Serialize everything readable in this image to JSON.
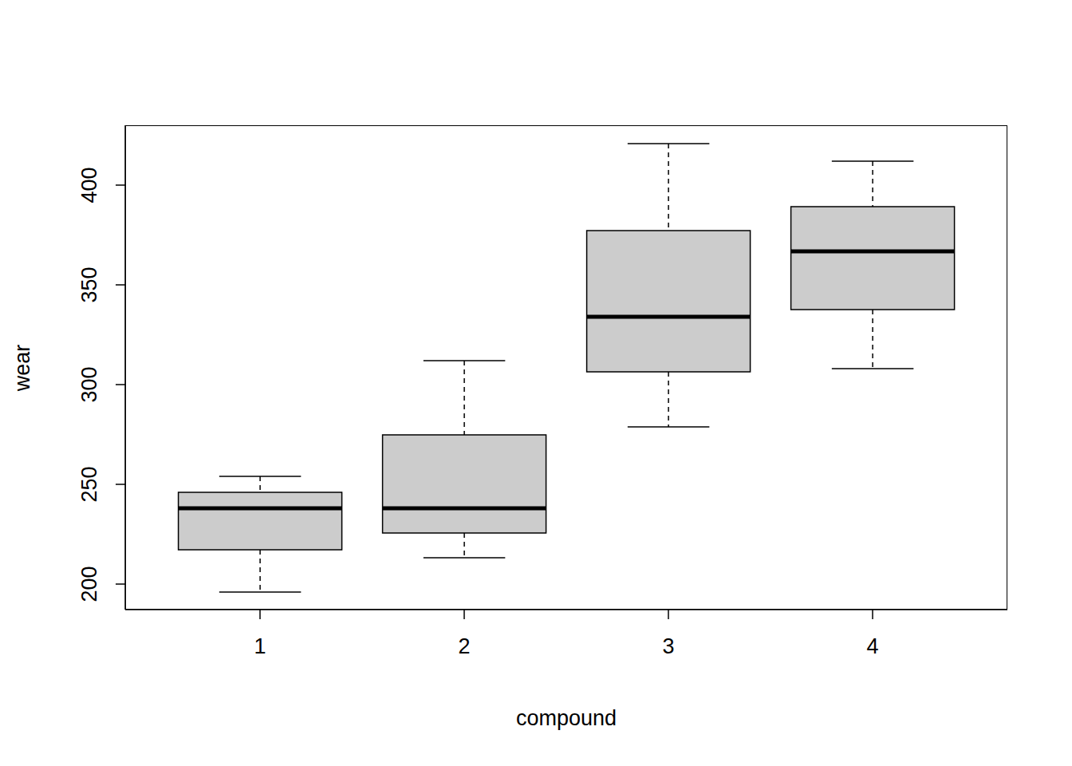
{
  "chart_data": {
    "type": "box",
    "x_label": "compound",
    "y_label": "wear",
    "categories": [
      "1",
      "2",
      "3",
      "4"
    ],
    "min": [
      196,
      213.2,
      278.8,
      308
    ],
    "q1": [
      217.2,
      225.6,
      306.4,
      337.6
    ],
    "median": [
      238,
      238,
      334,
      366.8
    ],
    "q3": [
      246,
      274.8,
      377.2,
      389.2
    ],
    "max": [
      254,
      312,
      420.8,
      412
    ],
    "color": "#cccccc",
    "ylim": [
      187.2,
      430
    ],
    "yticks": [
      200,
      250,
      300,
      350,
      400
    ],
    "grid": false
  }
}
